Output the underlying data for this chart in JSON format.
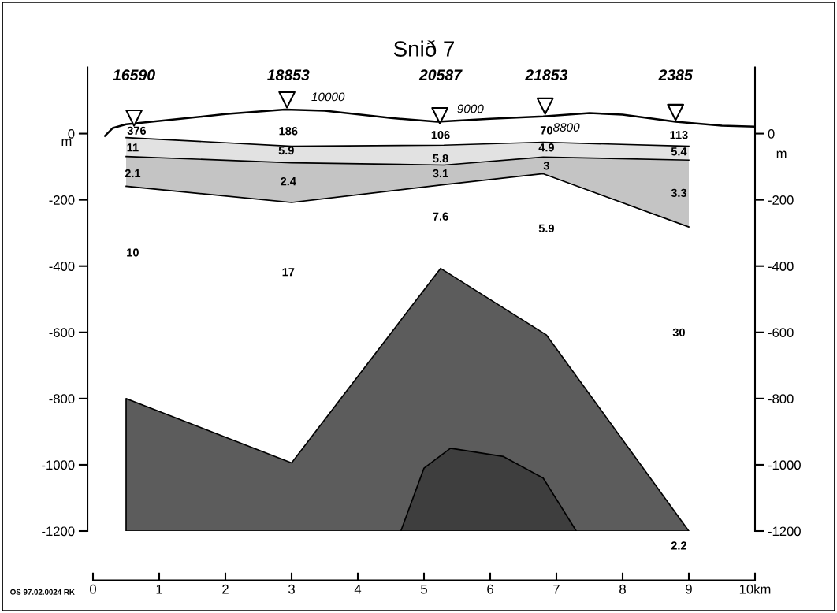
{
  "chart_data": {
    "type": "area",
    "title": "Snið 7",
    "xlim": [
      0,
      10
    ],
    "xticks": [
      0,
      1,
      2,
      3,
      4,
      5,
      6,
      7,
      8,
      9,
      {
        "value": 10,
        "label": "10km"
      }
    ],
    "ylim": [
      -1200,
      200
    ],
    "yticks": [
      0,
      -200,
      -400,
      -600,
      -800,
      -1000,
      -1200
    ],
    "y2lim": [
      -1200,
      200
    ],
    "y2ticks": [
      0,
      -200,
      -400,
      -600,
      -800,
      -1000,
      -1200
    ],
    "ylabel": "m",
    "y2label": "m",
    "grid": false,
    "legend": false,
    "series": [
      {
        "type": "line",
        "color": "#000000",
        "x": [
          0.5,
          3.0,
          5.3,
          6.8,
          9.0
        ],
        "values": [
          -12,
          -38,
          -35,
          -26,
          -38
        ]
      },
      {
        "type": "line",
        "color": "#000000",
        "x": [
          0.5,
          3.0,
          5.3,
          6.8,
          9.0
        ],
        "values": [
          -69,
          -88,
          -95,
          -71,
          -80
        ]
      },
      {
        "type": "line",
        "color": "#000000",
        "x": [
          0.5,
          3.0,
          5.3,
          6.8,
          9.0
        ],
        "values": [
          -159,
          -208,
          -154,
          -121,
          -282
        ]
      },
      {
        "color": "#5c5c5c",
        "x": [
          0.5,
          0.5,
          3.0,
          5.25,
          6.85,
          9.0
        ],
        "values": [
          -1200,
          -800,
          -994,
          -407,
          -608,
          -1200
        ]
      },
      {
        "color": "#3e3e3e",
        "x": [
          4.65,
          5.0,
          5.4,
          6.2,
          6.8,
          7.3
        ],
        "values": [
          -1200,
          -1010,
          -950,
          -975,
          -1040,
          -1200
        ]
      },
      {
        "type": "line",
        "color": "#000000",
        "x": [
          0.18,
          0.3,
          0.5,
          1.0,
          2.0,
          2.9,
          3.5,
          4.5,
          5.2,
          6.0,
          6.8,
          7.5,
          8.0,
          8.8,
          9.5,
          10.0
        ],
        "values": [
          -7,
          17,
          28,
          38,
          59,
          73,
          69,
          47,
          36,
          45,
          52,
          62,
          57,
          36,
          24,
          21
        ]
      },
      {
        "type": "scatter",
        "color": "#000000",
        "marker": "triangle",
        "x": [
          0.62,
          2.93,
          5.24,
          6.83,
          8.8
        ],
        "values": [
          47,
          102,
          54,
          83,
          64
        ]
      }
    ],
    "annotations": [
      "16590",
      "18853",
      "20587",
      "21853",
      "2385",
      "10000",
      "9000",
      "8800",
      "376",
      "11",
      "2.1",
      "10",
      "186",
      "5.9",
      "2.4",
      "17",
      "106",
      "5.8",
      "3.1",
      "7.6",
      "70",
      "4.9",
      "3",
      "5.9",
      "113",
      "5.4",
      "3.3",
      "30",
      "2.2",
      "OS 97.02.0024 RK"
    ]
  }
}
